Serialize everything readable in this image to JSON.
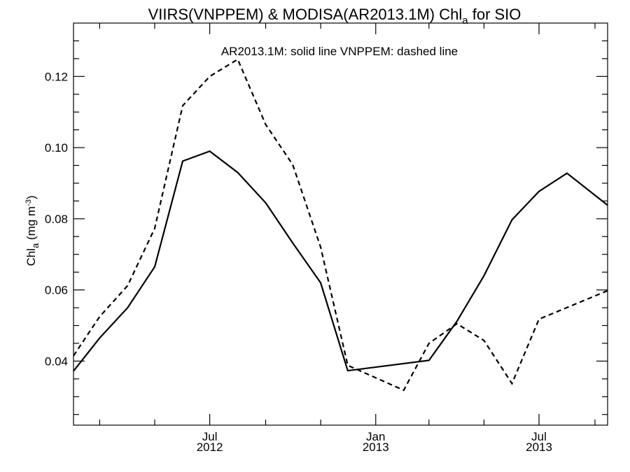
{
  "chart_data": {
    "type": "line",
    "title_main": "VIIRS(VNPPEM) & MODISA(AR2013.1M)  Chl",
    "title_sub": "a",
    "title_tail": " for SIO",
    "ylabel_main": "Chl",
    "ylabel_sub": "a",
    "ylabel_unit": " (mg m",
    "ylabel_exp": "-3",
    "ylabel_close": ")",
    "legend_text": "AR2013.1M: solid line   VNPPEM: dashed line",
    "ylim": [
      0.022,
      0.135
    ],
    "xlim": [
      "2012-02-01",
      "2013-09-15"
    ],
    "y_ticks": [
      0.04,
      0.06,
      0.08,
      0.1,
      0.12
    ],
    "y_tick_labels": [
      "0.04",
      "0.06",
      "0.08",
      "0.10",
      "0.12"
    ],
    "y_minor_ticks": [
      0.025,
      0.03,
      0.035,
      0.045,
      0.05,
      0.055,
      0.065,
      0.07,
      0.075,
      0.085,
      0.09,
      0.095,
      0.105,
      0.11,
      0.115,
      0.125,
      0.13
    ],
    "x_ticks": [
      {
        "date": "2012-07-01",
        "month": "Jul",
        "year": "2012"
      },
      {
        "date": "2013-01-01",
        "month": "Jan",
        "year": "2013"
      },
      {
        "date": "2013-07-01",
        "month": "Jul",
        "year": "2013"
      }
    ],
    "x_minor_ticks": [
      "2012-03-01",
      "2012-05-01",
      "2012-09-01",
      "2012-11-01",
      "2013-03-01",
      "2013-05-01",
      "2013-09-01"
    ],
    "series": [
      {
        "style": "solid",
        "points": [
          [
            "2012-02-01",
            0.0372
          ],
          [
            "2012-03-01",
            0.0465
          ],
          [
            "2012-04-01",
            0.055
          ],
          [
            "2012-05-01",
            0.0665
          ],
          [
            "2012-06-01",
            0.0962
          ],
          [
            "2012-07-01",
            0.099
          ],
          [
            "2012-08-01",
            0.093
          ],
          [
            "2012-09-01",
            0.0845
          ],
          [
            "2012-10-01",
            0.0732
          ],
          [
            "2012-11-01",
            0.062
          ],
          [
            "2012-12-01",
            0.0373
          ],
          [
            "2013-03-01",
            0.0402
          ],
          [
            "2013-04-01",
            0.0512
          ],
          [
            "2013-05-01",
            0.064
          ],
          [
            "2013-06-01",
            0.0797
          ],
          [
            "2013-07-01",
            0.0877
          ],
          [
            "2013-08-01",
            0.0928
          ],
          [
            "2013-09-15",
            0.0838
          ]
        ]
      },
      {
        "style": "dashed",
        "points": [
          [
            "2012-02-01",
            0.0415
          ],
          [
            "2012-03-01",
            0.0525
          ],
          [
            "2012-04-01",
            0.0612
          ],
          [
            "2012-05-01",
            0.0773
          ],
          [
            "2012-06-01",
            0.1118
          ],
          [
            "2012-07-01",
            0.12
          ],
          [
            "2012-08-01",
            0.1248
          ],
          [
            "2012-09-01",
            0.1065
          ],
          [
            "2012-10-01",
            0.0952
          ],
          [
            "2012-11-01",
            0.072
          ],
          [
            "2012-12-01",
            0.0388
          ],
          [
            "2013-02-01",
            0.0318
          ],
          [
            "2013-03-01",
            0.045
          ],
          [
            "2013-04-01",
            0.0505
          ],
          [
            "2013-05-01",
            0.0458
          ],
          [
            "2013-06-01",
            0.0337
          ],
          [
            "2013-07-01",
            0.0518
          ],
          [
            "2013-09-15",
            0.0598
          ]
        ]
      }
    ]
  }
}
